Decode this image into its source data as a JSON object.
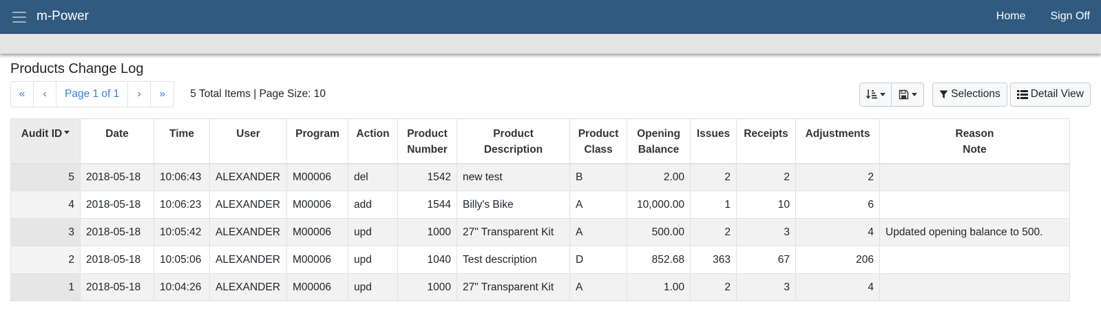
{
  "app": {
    "brand": "m-Power"
  },
  "nav": {
    "home": "Home",
    "sign_off": "Sign Off"
  },
  "page": {
    "title": "Products Change Log"
  },
  "pager": {
    "first": "«",
    "prev": "‹",
    "page_label": "Page 1 of 1",
    "next": "›",
    "last": "»",
    "total_info": "5 Total Items | Page Size: 10"
  },
  "toolbar": {
    "selections": "Selections",
    "detail_view": "Detail View"
  },
  "table": {
    "headers": {
      "audit_id": "Audit ID",
      "date": "Date",
      "time": "Time",
      "user": "User",
      "program": "Program",
      "action": "Action",
      "product_number_1": "Product",
      "product_number_2": "Number",
      "product_desc_1": "Product",
      "product_desc_2": "Description",
      "product_class_1": "Product",
      "product_class_2": "Class",
      "opening_balance_1": "Opening",
      "opening_balance_2": "Balance",
      "issues": "Issues",
      "receipts": "Receipts",
      "adjustments": "Adjustments",
      "reason_1": "Reason",
      "reason_2": "Note"
    },
    "rows": [
      {
        "audit_id": "5",
        "date": "2018-05-18",
        "time": "10:06:43",
        "user": "ALEXANDER",
        "program": "M00006",
        "action": "del",
        "product_number": "1542",
        "description": "new test",
        "class": "B",
        "opening_balance": "2.00",
        "issues": "2",
        "receipts": "2",
        "adjustments": "2",
        "reason": ""
      },
      {
        "audit_id": "4",
        "date": "2018-05-18",
        "time": "10:06:23",
        "user": "ALEXANDER",
        "program": "M00006",
        "action": "add",
        "product_number": "1544",
        "description": "Billy's Bike",
        "class": "A",
        "opening_balance": "10,000.00",
        "issues": "1",
        "receipts": "10",
        "adjustments": "6",
        "reason": ""
      },
      {
        "audit_id": "3",
        "date": "2018-05-18",
        "time": "10:05:42",
        "user": "ALEXANDER",
        "program": "M00006",
        "action": "upd",
        "product_number": "1000",
        "description": "27\" Transparent Kit",
        "class": "A",
        "opening_balance": "500.00",
        "issues": "2",
        "receipts": "3",
        "adjustments": "4",
        "reason": "Updated opening balance to 500."
      },
      {
        "audit_id": "2",
        "date": "2018-05-18",
        "time": "10:05:06",
        "user": "ALEXANDER",
        "program": "M00006",
        "action": "upd",
        "product_number": "1040",
        "description": "Test description",
        "class": "D",
        "opening_balance": "852.68",
        "issues": "363",
        "receipts": "67",
        "adjustments": "206",
        "reason": ""
      },
      {
        "audit_id": "1",
        "date": "2018-05-18",
        "time": "10:04:26",
        "user": "ALEXANDER",
        "program": "M00006",
        "action": "upd",
        "product_number": "1000",
        "description": "27\" Transparent Kit",
        "class": "A",
        "opening_balance": "1.00",
        "issues": "2",
        "receipts": "3",
        "adjustments": "4",
        "reason": ""
      }
    ]
  }
}
